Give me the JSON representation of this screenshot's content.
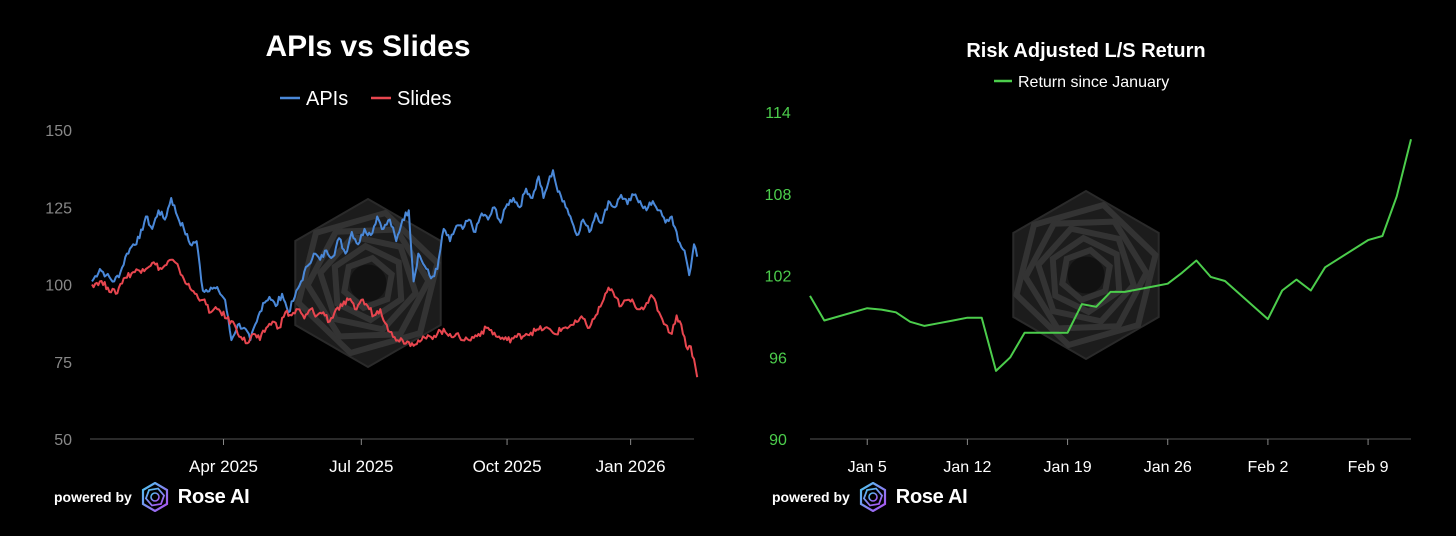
{
  "colors": {
    "background": "#000000",
    "apis": "#4a88d8",
    "slides": "#e8464f",
    "return": "#4ccd4c",
    "axis": "#888888",
    "watermark": "#2a2a2a"
  },
  "branding": {
    "powered_by": "powered by",
    "name": "Rose AI"
  },
  "chart_data": [
    {
      "type": "line",
      "title": "APIs vs Slides",
      "xlabel": "",
      "ylabel": "",
      "ylim": [
        50,
        155
      ],
      "yticks": [
        50,
        75,
        100,
        125,
        150
      ],
      "xlim": [
        0,
        380
      ],
      "xticks": [
        {
          "t": 83,
          "label": "Apr 2025"
        },
        {
          "t": 170,
          "label": "Jul 2025"
        },
        {
          "t": 262,
          "label": "Oct 2025"
        },
        {
          "t": 340,
          "label": "Jan 2026"
        }
      ],
      "legend_position": "top-center",
      "series": [
        {
          "name": "APIs",
          "color": "#4a88d8",
          "anchors": [
            [
              0,
              101
            ],
            [
              5,
              105
            ],
            [
              9,
              103
            ],
            [
              14,
              101
            ],
            [
              18,
              104
            ],
            [
              22,
              110
            ],
            [
              26,
              113
            ],
            [
              30,
              115
            ],
            [
              34,
              122
            ],
            [
              38,
              118
            ],
            [
              42,
              124
            ],
            [
              46,
              121
            ],
            [
              50,
              128
            ],
            [
              54,
              122
            ],
            [
              58,
              118
            ],
            [
              62,
              113
            ],
            [
              66,
              114
            ],
            [
              70,
              98
            ],
            [
              75,
              99
            ],
            [
              80,
              98
            ],
            [
              84,
              95
            ],
            [
              88,
              82
            ],
            [
              92,
              87
            ],
            [
              96,
              86
            ],
            [
              100,
              82
            ],
            [
              104,
              88
            ],
            [
              108,
              94
            ],
            [
              112,
              96
            ],
            [
              116,
              93
            ],
            [
              120,
              97
            ],
            [
              124,
              91
            ],
            [
              128,
              96
            ],
            [
              132,
              101
            ],
            [
              136,
              106
            ],
            [
              140,
              110
            ],
            [
              144,
              108
            ],
            [
              148,
              111
            ],
            [
              152,
              109
            ],
            [
              156,
              115
            ],
            [
              160,
              110
            ],
            [
              164,
              117
            ],
            [
              168,
              113
            ],
            [
              172,
              118
            ],
            [
              176,
              116
            ],
            [
              180,
              122
            ],
            [
              184,
              118
            ],
            [
              188,
              121
            ],
            [
              192,
              114
            ],
            [
              196,
              121
            ],
            [
              200,
              124
            ],
            [
              203,
              101
            ],
            [
              206,
              110
            ],
            [
              210,
              106
            ],
            [
              214,
              102
            ],
            [
              218,
              105
            ],
            [
              222,
              118
            ],
            [
              226,
              114
            ],
            [
              230,
              119
            ],
            [
              234,
              118
            ],
            [
              238,
              121
            ],
            [
              242,
              117
            ],
            [
              246,
              123
            ],
            [
              250,
              121
            ],
            [
              254,
              125
            ],
            [
              258,
              120
            ],
            [
              262,
              126
            ],
            [
              266,
              128
            ],
            [
              270,
              125
            ],
            [
              274,
              131
            ],
            [
              278,
              128
            ],
            [
              282,
              135
            ],
            [
              285,
              128
            ],
            [
              288,
              133
            ],
            [
              291,
              137
            ],
            [
              294,
              130
            ],
            [
              298,
              127
            ],
            [
              302,
              122
            ],
            [
              306,
              116
            ],
            [
              310,
              121
            ],
            [
              314,
              117
            ],
            [
              318,
              123
            ],
            [
              322,
              120
            ],
            [
              326,
              127
            ],
            [
              330,
              125
            ],
            [
              334,
              129
            ],
            [
              338,
              126
            ],
            [
              342,
              129
            ],
            [
              346,
              127
            ],
            [
              350,
              124
            ],
            [
              354,
              127
            ],
            [
              358,
              124
            ],
            [
              362,
              120
            ],
            [
              366,
              122
            ],
            [
              370,
              114
            ],
            [
              374,
              111
            ],
            [
              377,
              103
            ],
            [
              380,
              113
            ],
            [
              382,
              109
            ]
          ]
        },
        {
          "name": "Slides",
          "color": "#e8464f",
          "anchors": [
            [
              0,
              100
            ],
            [
              5,
              101
            ],
            [
              10,
              99
            ],
            [
              15,
              97
            ],
            [
              20,
              102
            ],
            [
              26,
              104
            ],
            [
              32,
              105
            ],
            [
              38,
              107
            ],
            [
              44,
              105
            ],
            [
              50,
              108
            ],
            [
              55,
              105
            ],
            [
              60,
              100
            ],
            [
              65,
              97
            ],
            [
              70,
              95
            ],
            [
              75,
              91
            ],
            [
              80,
              92
            ],
            [
              85,
              89
            ],
            [
              90,
              87
            ],
            [
              94,
              83
            ],
            [
              98,
              81
            ],
            [
              102,
              84
            ],
            [
              106,
              82
            ],
            [
              110,
              86
            ],
            [
              114,
              88
            ],
            [
              118,
              86
            ],
            [
              122,
              91
            ],
            [
              126,
              90
            ],
            [
              130,
              92
            ],
            [
              134,
              89
            ],
            [
              138,
              92
            ],
            [
              142,
              90
            ],
            [
              146,
              91
            ],
            [
              150,
              88
            ],
            [
              154,
              92
            ],
            [
              158,
              93
            ],
            [
              162,
              95
            ],
            [
              166,
              92
            ],
            [
              170,
              95
            ],
            [
              174,
              93
            ],
            [
              178,
              90
            ],
            [
              182,
              92
            ],
            [
              186,
              87
            ],
            [
              190,
              83
            ],
            [
              196,
              82
            ],
            [
              202,
              81
            ],
            [
              208,
              82
            ],
            [
              214,
              83
            ],
            [
              220,
              85
            ],
            [
              226,
              84
            ],
            [
              232,
              83
            ],
            [
              238,
              82
            ],
            [
              244,
              84
            ],
            [
              250,
              86
            ],
            [
              256,
              83
            ],
            [
              262,
              82
            ],
            [
              268,
              83
            ],
            [
              274,
              84
            ],
            [
              280,
              85
            ],
            [
              286,
              86
            ],
            [
              292,
              84
            ],
            [
              298,
              86
            ],
            [
              304,
              87
            ],
            [
              310,
              89
            ],
            [
              314,
              86
            ],
            [
              318,
              90
            ],
            [
              322,
              94
            ],
            [
              326,
              99
            ],
            [
              330,
              96
            ],
            [
              334,
              93
            ],
            [
              338,
              95
            ],
            [
              342,
              94
            ],
            [
              346,
              92
            ],
            [
              350,
              94
            ],
            [
              354,
              96
            ],
            [
              358,
              91
            ],
            [
              362,
              87
            ],
            [
              366,
              84
            ],
            [
              369,
              90
            ],
            [
              372,
              87
            ],
            [
              375,
              80
            ],
            [
              378,
              80
            ],
            [
              381,
              73
            ],
            [
              382,
              70
            ]
          ]
        }
      ]
    },
    {
      "type": "line",
      "title": "Risk Adjusted L/S Return",
      "xlabel": "",
      "ylabel": "",
      "ylim": [
        90,
        116
      ],
      "yticks": [
        90,
        96,
        102,
        108,
        114
      ],
      "xlim": [
        1,
        43
      ],
      "xticks": [
        {
          "t": 5,
          "label": "Jan 5"
        },
        {
          "t": 12,
          "label": "Jan 12"
        },
        {
          "t": 19,
          "label": "Jan 19"
        },
        {
          "t": 26,
          "label": "Jan 26"
        },
        {
          "t": 33,
          "label": "Feb 2"
        },
        {
          "t": 40,
          "label": "Feb 9"
        }
      ],
      "legend_position": "top-center",
      "series": [
        {
          "name": "Return since January",
          "color": "#4ccd4c",
          "x": [
            1,
            2,
            5,
            6,
            7,
            8,
            9,
            10,
            11,
            12,
            13,
            14,
            15,
            16,
            17,
            19,
            20,
            21,
            22,
            23,
            26,
            27,
            28,
            29,
            30,
            33,
            34,
            35,
            36,
            37,
            40,
            41,
            42,
            43
          ],
          "values": [
            100.5,
            98.7,
            99.6,
            99.5,
            99.3,
            98.6,
            98.3,
            98.5,
            98.7,
            98.9,
            98.9,
            95.0,
            96.0,
            97.8,
            97.8,
            97.8,
            99.9,
            99.7,
            100.8,
            100.8,
            101.4,
            102.2,
            103.1,
            101.9,
            101.6,
            98.8,
            100.9,
            101.7,
            100.9,
            102.6,
            104.6,
            104.9,
            107.8,
            112.0
          ]
        }
      ]
    }
  ]
}
